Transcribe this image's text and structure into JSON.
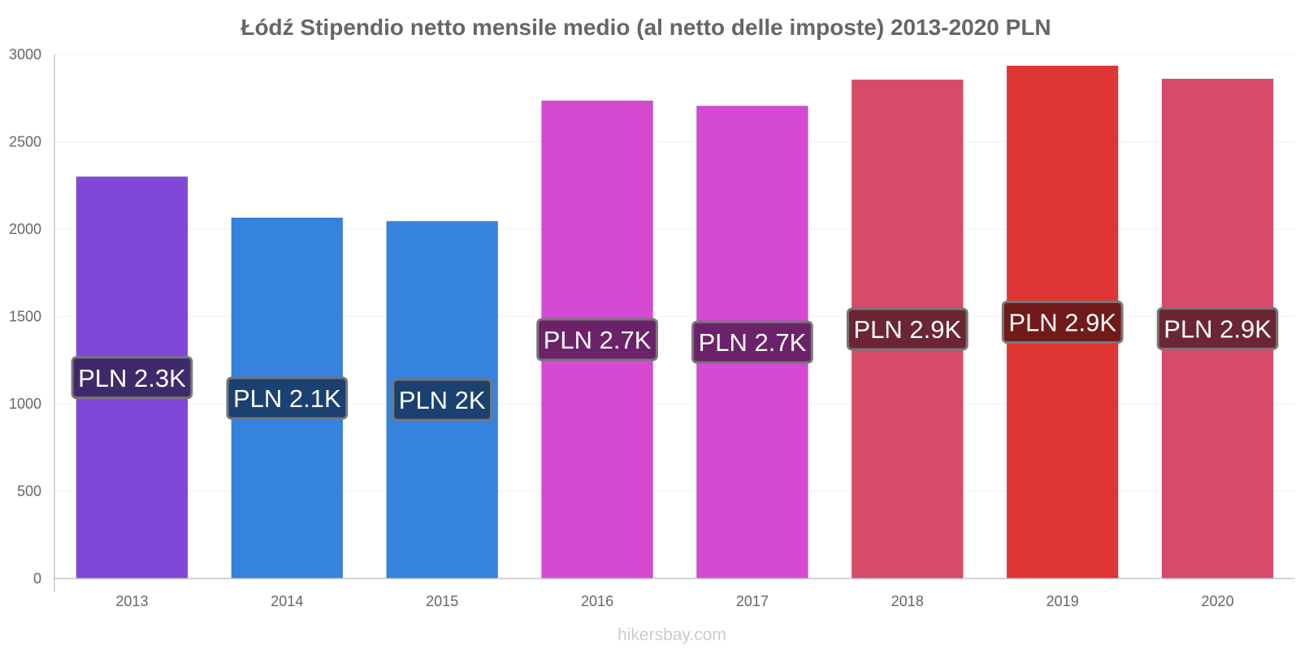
{
  "chart_data": {
    "type": "bar",
    "title": "Łódź Stipendio netto mensile medio (al netto delle imposte) 2013-2020 PLN",
    "xlabel": "",
    "ylabel": "",
    "ylim": [
      0,
      3000
    ],
    "yticks": [
      0,
      500,
      1000,
      1500,
      2000,
      2500,
      3000
    ],
    "grid": true,
    "legend": "none",
    "categories": [
      "2013",
      "2014",
      "2015",
      "2016",
      "2017",
      "2018",
      "2019",
      "2020"
    ],
    "values": [
      2300,
      2065,
      2045,
      2735,
      2705,
      2855,
      2935,
      2860
    ],
    "data_labels": [
      "PLN 2.3K",
      "PLN 2.1K",
      "PLN 2K",
      "PLN 2.7K",
      "PLN 2.7K",
      "PLN 2.9K",
      "PLN 2.9K",
      "PLN 2.9K"
    ],
    "bar_colors": [
      "#8047D9",
      "#3583DF",
      "#3583DF",
      "#D649D3",
      "#D649D3",
      "#D84A68",
      "#E03535",
      "#D84A68"
    ],
    "label_bg_colors": [
      "#3E2A6B",
      "#1B4170",
      "#1B4170",
      "#6B2269",
      "#6B2269",
      "#6C2535",
      "#701A1A",
      "#6C2535"
    ]
  },
  "watermark": "hikersbay.com"
}
